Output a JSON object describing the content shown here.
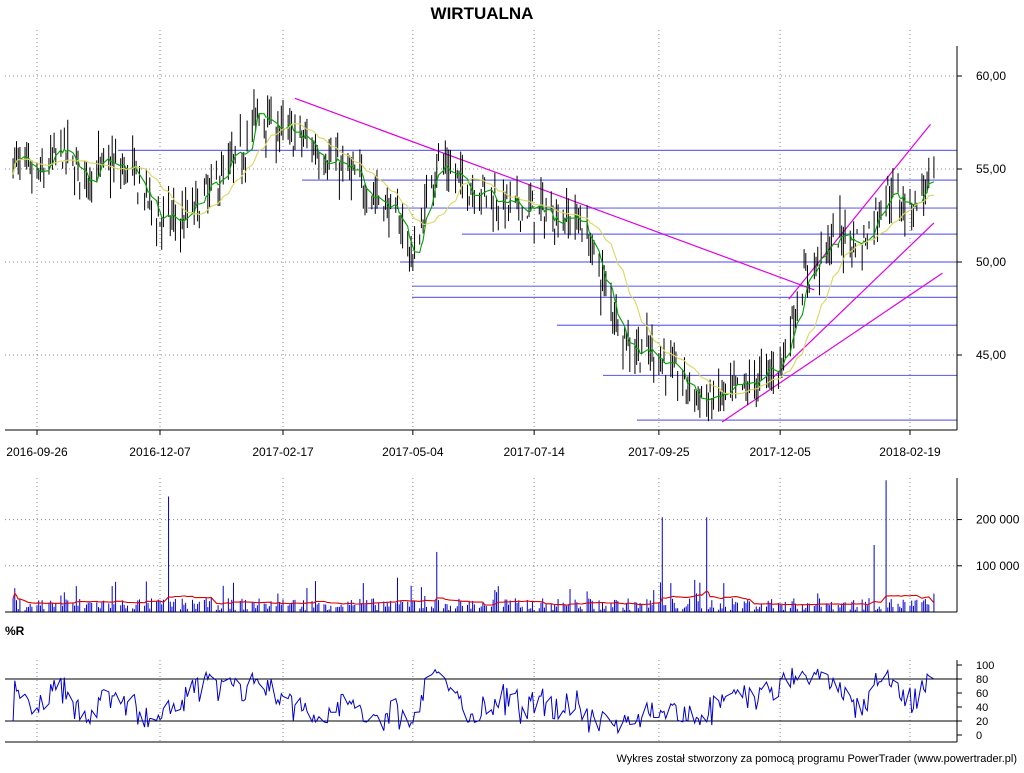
{
  "footer": "Wykres został stworzony za pomocą programu PowerTrader (www.powertrader.pl)",
  "chart_data": [
    {
      "type": "candlestick",
      "title": "WIRTUALNA",
      "x_tick_labels": [
        "2016-09-26",
        "2016-12-07",
        "2017-02-17",
        "2017-05-04",
        "2017-07-14",
        "2017-09-25",
        "2017-12-05",
        "2018-02-19"
      ],
      "y_tick_labels": [
        "60,00",
        "55,00",
        "50,00",
        "45,00"
      ],
      "y_ticks": [
        60,
        55,
        50,
        45
      ],
      "ylim": [
        41.2,
        62.5
      ],
      "grid": true,
      "close_anchors": [
        {
          "date": "2016-09-12",
          "value": 55.5
        },
        {
          "date": "2016-09-26",
          "value": 54.4
        },
        {
          "date": "2016-10-10",
          "value": 56.0
        },
        {
          "date": "2016-10-24",
          "value": 54.6
        },
        {
          "date": "2016-11-07",
          "value": 55.2
        },
        {
          "date": "2016-11-21",
          "value": 54.8
        },
        {
          "date": "2016-12-07",
          "value": 52.3
        },
        {
          "date": "2016-12-21",
          "value": 52.2
        },
        {
          "date": "2017-01-09",
          "value": 54.2
        },
        {
          "date": "2017-01-25",
          "value": 56.0
        },
        {
          "date": "2017-02-02",
          "value": 58.0
        },
        {
          "date": "2017-02-17",
          "value": 57.0
        },
        {
          "date": "2017-03-03",
          "value": 56.5
        },
        {
          "date": "2017-03-17",
          "value": 55.5
        },
        {
          "date": "2017-03-31",
          "value": 54.5
        },
        {
          "date": "2017-04-14",
          "value": 53.5
        },
        {
          "date": "2017-04-28",
          "value": 52.0
        },
        {
          "date": "2017-05-04",
          "value": 50.0
        },
        {
          "date": "2017-05-18",
          "value": 55.5
        },
        {
          "date": "2017-06-01",
          "value": 54.3
        },
        {
          "date": "2017-06-15",
          "value": 53.8
        },
        {
          "date": "2017-06-29",
          "value": 53.0
        },
        {
          "date": "2017-07-14",
          "value": 52.8
        },
        {
          "date": "2017-07-28",
          "value": 52.5
        },
        {
          "date": "2017-08-11",
          "value": 52.2
        },
        {
          "date": "2017-08-25",
          "value": 48.5
        },
        {
          "date": "2017-09-08",
          "value": 45.5
        },
        {
          "date": "2017-09-25",
          "value": 45.0
        },
        {
          "date": "2017-10-09",
          "value": 43.5
        },
        {
          "date": "2017-10-23",
          "value": 42.5
        },
        {
          "date": "2017-11-06",
          "value": 42.8
        },
        {
          "date": "2017-11-20",
          "value": 43.5
        },
        {
          "date": "2017-12-05",
          "value": 44.5
        },
        {
          "date": "2017-12-19",
          "value": 49.0
        },
        {
          "date": "2018-01-08",
          "value": 51.5
        },
        {
          "date": "2018-01-22",
          "value": 51.0
        },
        {
          "date": "2018-02-05",
          "value": 53.8
        },
        {
          "date": "2018-02-19",
          "value": 53.0
        },
        {
          "date": "2018-03-05",
          "value": 54.5
        }
      ],
      "moving_averages": [
        {
          "name": "short",
          "color": "#00a000"
        },
        {
          "name": "long",
          "color": "#d8d860"
        }
      ],
      "horizontal_levels": [
        56.0,
        54.4,
        52.9,
        51.5,
        50.0,
        48.7,
        48.1,
        46.6,
        43.9,
        41.5
      ],
      "trendlines": [
        {
          "color": "#e000e0",
          "points": [
            {
              "date": "2017-02-24",
              "value": 58.8
            },
            {
              "date": "2017-12-25",
              "value": 48.5
            }
          ]
        },
        {
          "color": "#e000e0",
          "points": [
            {
              "date": "2017-11-01",
              "value": 41.4
            },
            {
              "date": "2018-03-10",
              "value": 49.4
            }
          ]
        },
        {
          "color": "#e000e0",
          "points": [
            {
              "date": "2017-12-01",
              "value": 43.8
            },
            {
              "date": "2018-03-05",
              "value": 52.1
            }
          ]
        },
        {
          "color": "#e000e0",
          "points": [
            {
              "date": "2017-12-10",
              "value": 48.0
            },
            {
              "date": "2018-03-03",
              "value": 57.4
            }
          ]
        }
      ],
      "colors": {
        "candles": "#000000",
        "levels": "#6a6af0",
        "trendlines": "#e000e0"
      }
    },
    {
      "type": "bar",
      "y_tick_labels": [
        "200 000",
        "100 000"
      ],
      "y_ticks": [
        200000,
        100000
      ],
      "ylim": [
        0,
        290000
      ],
      "typical_volume": 20000,
      "peak_volumes": [
        {
          "date": "2016-12-12",
          "value": 250000
        },
        {
          "date": "2017-05-18",
          "value": 130000
        },
        {
          "date": "2017-09-27",
          "value": 205000
        },
        {
          "date": "2017-10-22",
          "value": 205000
        },
        {
          "date": "2018-01-29",
          "value": 145000
        },
        {
          "date": "2018-02-05",
          "value": 285000
        }
      ],
      "colors": {
        "bars": "#0000cc",
        "average": "#e00000"
      }
    },
    {
      "type": "line",
      "indicator": "%R",
      "y_tick_labels": [
        "100",
        "80",
        "60",
        "40",
        "20",
        "0"
      ],
      "y_ticks": [
        100,
        80,
        60,
        40,
        20,
        0
      ],
      "reference_lines": [
        80,
        20
      ],
      "ylim": [
        0,
        100
      ],
      "colors": {
        "line": "#0000cc"
      }
    }
  ]
}
